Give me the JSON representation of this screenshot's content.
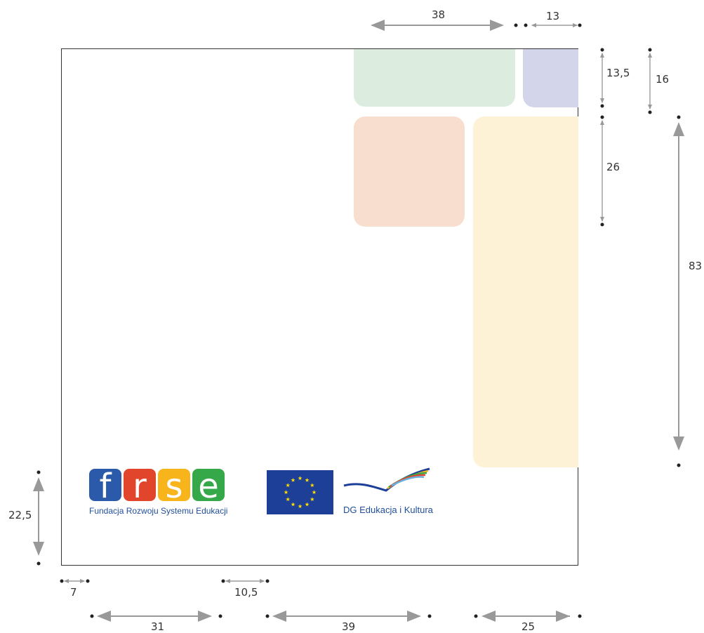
{
  "dimensions": {
    "top_left_width": "38",
    "top_right_width": "13",
    "right_top1": "13,5",
    "right_top2": "16",
    "right_mid": "26",
    "right_big": "83",
    "left_bottom": "22,5",
    "bottom_small1": "7",
    "bottom_small2": "10,5",
    "bottom_a": "31",
    "bottom_b": "39",
    "bottom_c": "25"
  },
  "logos": {
    "frse_caption": "Fundacja Rozwoju Systemu Edukacji",
    "dg_caption": "DG Edukacja i Kultura"
  },
  "colors": {
    "green_block": "#dcede0",
    "purple_block": "#d3d6ea",
    "orange_block": "#f8dece",
    "yellow_block": "#fdf2d6",
    "frse_blue": "#2a5aa9",
    "frse_red": "#e1462c",
    "frse_yellow": "#f7b51b",
    "frse_green": "#35a849",
    "eu_blue": "#1d3f98",
    "eu_star": "#ffdd00"
  }
}
